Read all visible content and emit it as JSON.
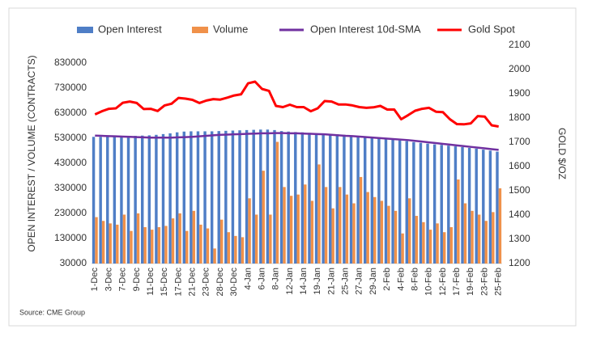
{
  "chart_data": {
    "type": "combo",
    "categories": [
      "1-Dec",
      null,
      "3-Dec",
      null,
      "7-Dec",
      null,
      "9-Dec",
      null,
      "11-Dec",
      null,
      "15-Dec",
      null,
      "17-Dec",
      null,
      "21-Dec",
      null,
      "23-Dec",
      null,
      "28-Dec",
      null,
      "30-Dec",
      null,
      "4-Jan",
      null,
      "6-Jan",
      null,
      "8-Jan",
      null,
      "12-Jan",
      null,
      "14-Jan",
      null,
      "19-Jan",
      null,
      "21-Jan",
      null,
      "25-Jan",
      null,
      "27-Jan",
      null,
      "29-Jan",
      null,
      "2-Feb",
      null,
      "4-Feb",
      null,
      "8-Feb",
      null,
      "10-Feb",
      null,
      "12-Feb",
      null,
      "17-Feb",
      null,
      "19-Feb",
      null,
      "23-Feb",
      null,
      "25-Feb"
    ],
    "series": [
      {
        "name": "Open Interest",
        "color": "#4f7ec6",
        "kind": "bar",
        "values": [
          535000,
          535000,
          536000,
          537000,
          538000,
          538000,
          539000,
          540000,
          541000,
          543000,
          546000,
          549000,
          553000,
          556000,
          557000,
          557000,
          557000,
          557000,
          558000,
          559000,
          560000,
          561000,
          562000,
          563000,
          564000,
          564000,
          562000,
          558000,
          556000,
          554000,
          553000,
          551000,
          549000,
          547000,
          546000,
          545000,
          543000,
          541000,
          538000,
          535000,
          533000,
          530000,
          527000,
          524000,
          521000,
          518000,
          514000,
          511000,
          508000,
          505000,
          503000,
          500000,
          497000,
          494000,
          491000,
          488000,
          484000,
          480000,
          476000
        ]
      },
      {
        "name": "Volume",
        "color": "#f0914a",
        "kind": "bar",
        "values": [
          215000,
          200000,
          190000,
          185000,
          225000,
          160000,
          230000,
          175000,
          165000,
          175000,
          180000,
          210000,
          230000,
          160000,
          240000,
          185000,
          170000,
          90000,
          205000,
          155000,
          140000,
          135000,
          290000,
          225000,
          400000,
          225000,
          515000,
          335000,
          300000,
          305000,
          345000,
          280000,
          425000,
          335000,
          250000,
          335000,
          305000,
          270000,
          375000,
          315000,
          295000,
          280000,
          260000,
          240000,
          150000,
          290000,
          220000,
          195000,
          165000,
          190000,
          155000,
          175000,
          365000,
          270000,
          240000,
          225000,
          200000,
          235000,
          330000
        ]
      },
      {
        "name": "Open Interest 10d-SMA",
        "color": "#7030a0",
        "kind": "line",
        "values": [
          540000,
          539000,
          538000,
          537000,
          536000,
          535000,
          534000,
          533000,
          532000,
          532000,
          532000,
          532000,
          533000,
          534000,
          535000,
          537000,
          539000,
          541000,
          543000,
          544000,
          545000,
          546000,
          547000,
          548000,
          549000,
          549000,
          550000,
          550000,
          549000,
          549000,
          548000,
          547000,
          546000,
          545000,
          543000,
          541000,
          539000,
          538000,
          536000,
          534000,
          532000,
          530000,
          528000,
          526000,
          524000,
          522000,
          519000,
          516000,
          513000,
          510000,
          507000,
          504000,
          501000,
          498000,
          495000,
          492000,
          489000,
          486000,
          483000
        ]
      },
      {
        "name": "Gold Spot",
        "color": "#ff0000",
        "kind": "line",
        "axis": "y2",
        "values": [
          1815,
          1828,
          1838,
          1840,
          1863,
          1868,
          1862,
          1837,
          1838,
          1829,
          1852,
          1859,
          1883,
          1880,
          1875,
          1862,
          1872,
          1878,
          1876,
          1884,
          1893,
          1898,
          1943,
          1950,
          1920,
          1912,
          1850,
          1845,
          1855,
          1845,
          1845,
          1828,
          1840,
          1870,
          1868,
          1856,
          1856,
          1852,
          1845,
          1842,
          1844,
          1850,
          1835,
          1835,
          1795,
          1812,
          1830,
          1838,
          1842,
          1826,
          1824,
          1795,
          1775,
          1774,
          1778,
          1808,
          1806,
          1770,
          1765
        ]
      }
    ],
    "ylabel": "OPEN INTEREST / VOLUME (CONTRACTS)",
    "y2label": "GOLD $/OZ",
    "ylim": [
      30000,
      900000
    ],
    "yticks": [
      30000,
      130000,
      230000,
      330000,
      430000,
      530000,
      630000,
      730000,
      830000
    ],
    "y2lim": [
      1200,
      2100
    ],
    "y2ticks": [
      1200,
      1300,
      1400,
      1500,
      1600,
      1700,
      1800,
      1900,
      2000,
      2100
    ],
    "source": "Source: CME Group"
  }
}
